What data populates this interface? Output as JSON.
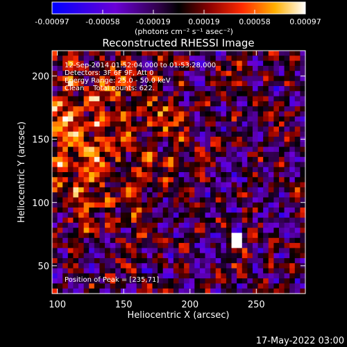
{
  "chart_data": {
    "type": "heatmap",
    "title": "Reconstructed RHESSI Image",
    "xlabel": "Heliocentric X (arcsec)",
    "ylabel": "Heliocentric Y (arcsec)",
    "xlim": [
      96,
      287
    ],
    "ylim": [
      28,
      220
    ],
    "xticks": [
      100,
      150,
      200,
      250
    ],
    "yticks": [
      50,
      100,
      150,
      200
    ],
    "colorbar": {
      "ticks": [
        "-0.00097",
        "-0.00058",
        "-0.00019",
        "0.00019",
        "0.00058",
        "0.00097"
      ],
      "unit_label": "(photons cm⁻² s⁻¹ asec⁻²)",
      "range": [
        -0.00097,
        0.00097
      ]
    },
    "annotations": [
      "12-Sep-2014 01:52:04.000 to 01:53:28.000",
      "Detectors: 3F 6F 9F, Att 0",
      "Energy Range: 25.0 - 50.0 keV",
      "Clean    Total counts: 622."
    ],
    "peak_label": "Position of Peak = [235,71]",
    "peak_position": [
      235,
      71
    ],
    "footer_date": "17-May-2022 03:00"
  }
}
